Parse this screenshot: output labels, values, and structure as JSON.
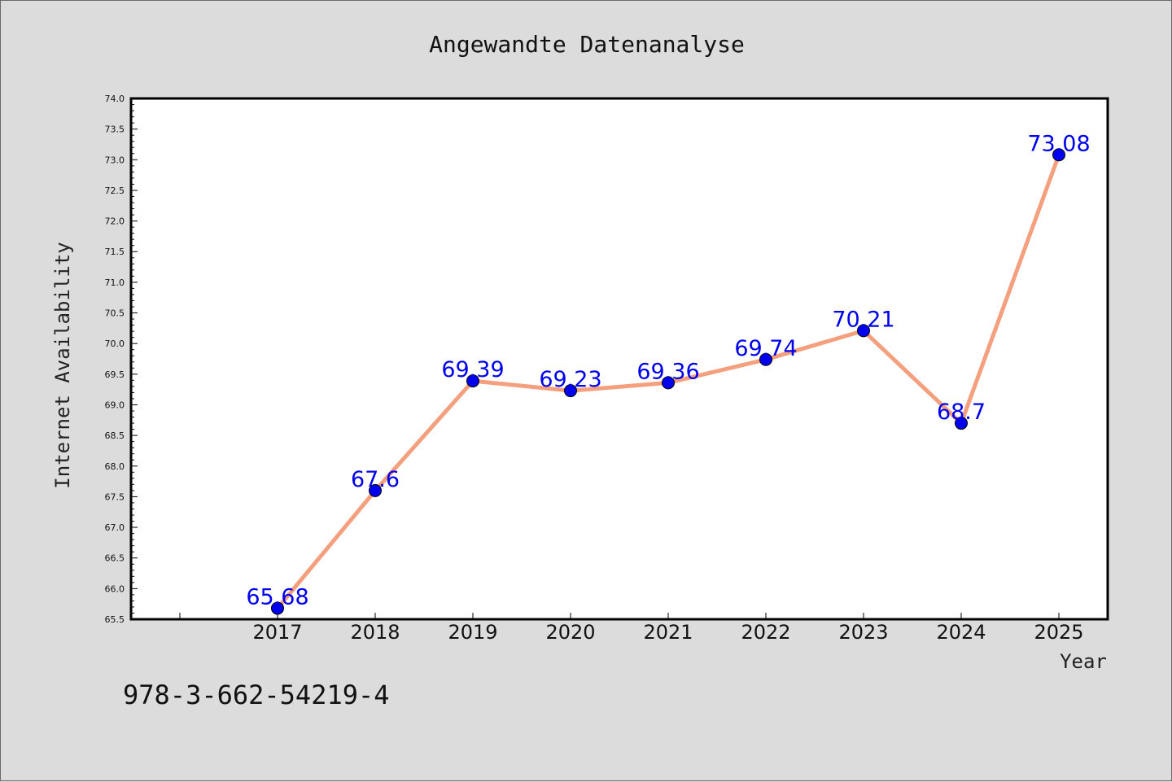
{
  "chart_data": {
    "type": "line",
    "title": "Angewandte Datenanalyse",
    "xlabel": "Year",
    "ylabel": "Internet Availability",
    "categories": [
      "2017",
      "2018",
      "2019",
      "2020",
      "2021",
      "2022",
      "2023",
      "2024",
      "2025"
    ],
    "series": [
      {
        "values": [
          65.68,
          67.6,
          69.39,
          69.23,
          69.36,
          69.74,
          70.21,
          68.7,
          73.08
        ],
        "data_labels": [
          "65.68",
          "67.6",
          "69.39",
          "69.23",
          "69.36",
          "69.74",
          "70.21",
          "68.7",
          "73.08"
        ],
        "line_color": "#f4a07e",
        "marker_color": "#0000ee",
        "label_color": "#0000ee"
      }
    ],
    "ylim": [
      65.5,
      74.0
    ],
    "yticks": [
      "65.5",
      "66.0",
      "66.5",
      "67.0",
      "67.5",
      "68.0",
      "68.5",
      "69.0",
      "69.5",
      "70.0",
      "70.5",
      "71.0",
      "71.5",
      "72.0",
      "72.5",
      "73.0",
      "73.5",
      "74.0"
    ],
    "grid": false,
    "legend": "none"
  },
  "footer": {
    "isbn": "978-3-662-54219-4"
  },
  "colors": {
    "background": "#dcdcdc",
    "plot_background": "#ffffff"
  }
}
